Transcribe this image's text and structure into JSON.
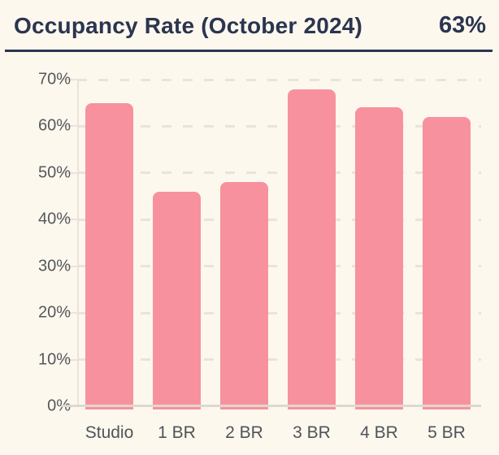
{
  "header": {
    "title": "Occupancy Rate (October 2024)",
    "value": "63%"
  },
  "chart_data": {
    "type": "bar",
    "title": "Occupancy Rate (October 2024)",
    "headline_value": "63%",
    "categories": [
      "Studio",
      "1 BR",
      "2 BR",
      "3 BR",
      "4 BR",
      "5 BR"
    ],
    "values": [
      65,
      46,
      48,
      68,
      64,
      62
    ],
    "xlabel": "",
    "ylabel": "",
    "ylim": [
      0,
      70
    ],
    "ytick_step": 10,
    "ytick_labels": [
      "0%",
      "10%",
      "20%",
      "30%",
      "40%",
      "50%",
      "60%",
      "70%"
    ],
    "grid": "horizontal-dashed",
    "legend": "none",
    "colors": {
      "bar": "#f8919e",
      "background": "#fdf8ee",
      "title_text": "#2b3550",
      "axis_text": "#54585c",
      "gridline": "#e9e3d9",
      "baseline": "#ded8d0"
    }
  }
}
